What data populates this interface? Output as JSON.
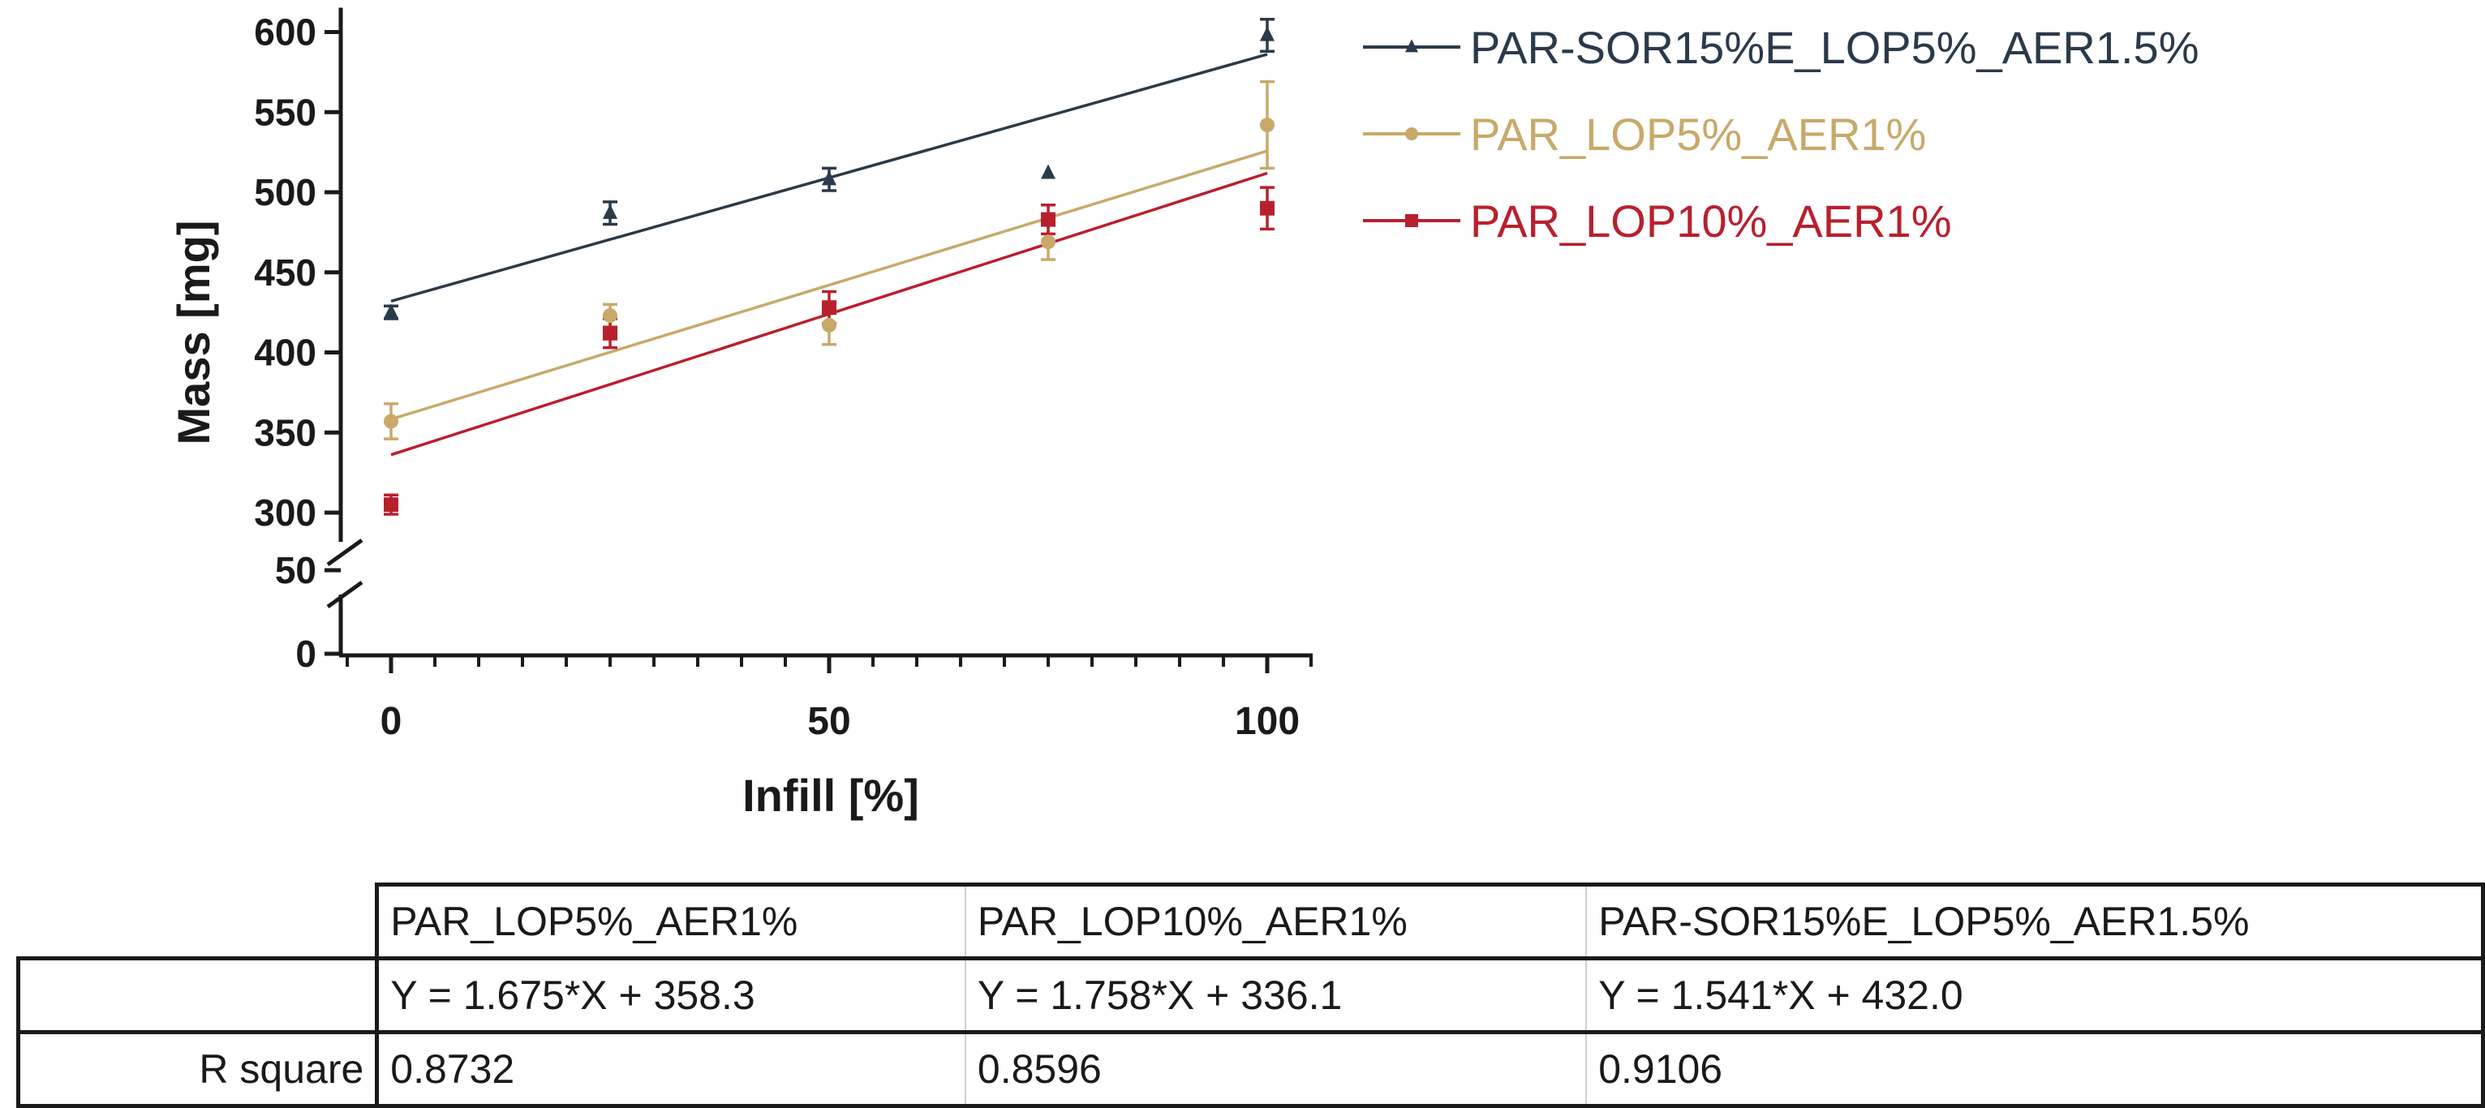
{
  "chart_data": {
    "type": "scatter",
    "xlabel": "Infill [%]",
    "ylabel": "Mass [mg]",
    "xlim": [
      -5,
      105
    ],
    "x_ticks": [
      "0",
      "50",
      "100"
    ],
    "x_tick_values": [
      0,
      50,
      100
    ],
    "y_ticks_upper": [
      "300",
      "350",
      "400",
      "450",
      "500",
      "550",
      "600"
    ],
    "y_tick_values_upper": [
      300,
      350,
      400,
      450,
      500,
      550,
      600
    ],
    "y_ticks_lower": [
      "0",
      "50"
    ],
    "y_tick_values_lower": [
      0,
      50
    ],
    "axis_break": "between 50 and 300 mg",
    "legend_position": "top-right, outside plot",
    "series": [
      {
        "name": "PAR-SOR15%E_LOP5%_AER1.5%",
        "color": "#2b3a4a",
        "marker": "triangle",
        "x": [
          0,
          25,
          50,
          75,
          100
        ],
        "y": [
          425,
          487,
          508,
          512,
          598
        ],
        "err": [
          4,
          7,
          7,
          0,
          10
        ],
        "fit": {
          "slope": 1.541,
          "intercept": 432.0
        }
      },
      {
        "name": "PAR_LOP5%_AER1%",
        "color": "#c8a96a",
        "marker": "circle",
        "x": [
          0,
          25,
          50,
          75,
          100
        ],
        "y": [
          357,
          423,
          417,
          469,
          542
        ],
        "err": [
          11,
          7,
          12,
          11,
          27
        ],
        "fit": {
          "slope": 1.675,
          "intercept": 358.3
        }
      },
      {
        "name": "PAR_LOP10%_AER1%",
        "color": "#b8202e",
        "marker": "square",
        "x": [
          0,
          25,
          50,
          75,
          100
        ],
        "y": [
          305,
          412,
          428,
          483,
          490
        ],
        "err": [
          6,
          9,
          10,
          9,
          13
        ],
        "fit": {
          "slope": 1.758,
          "intercept": 336.1
        }
      }
    ]
  },
  "table": {
    "headers": [
      "PAR_LOP5%_AER1%",
      "PAR_LOP10%_AER1%",
      "PAR-SOR15%E_LOP5%_AER1.5%"
    ],
    "equations": [
      "Y = 1.675*X + 358.3",
      "Y = 1.758*X + 336.1",
      "Y = 1.541*X + 432.0"
    ],
    "r_square_label": "R square",
    "r_square": [
      "0.8732",
      "0.8596",
      "0.9106"
    ]
  }
}
